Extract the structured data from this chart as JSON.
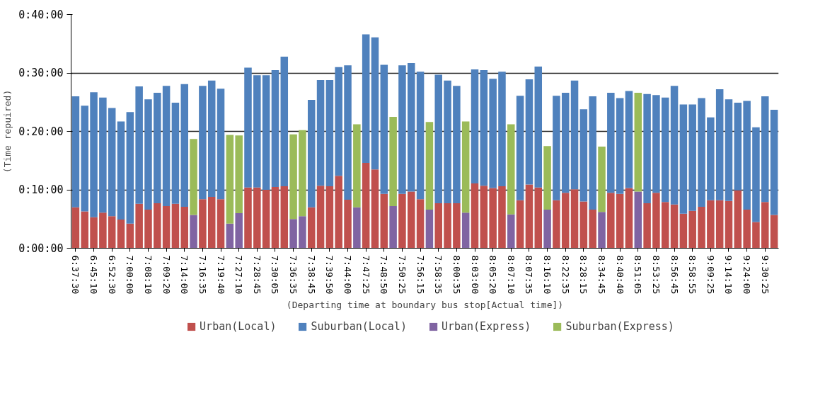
{
  "chart_data": {
    "type": "bar",
    "stacked": true,
    "ylabel": "(Time repuired)",
    "xlabel": "(Departing time at boundary bus stop[Actual time])",
    "categories": [
      "6:37:30",
      null,
      "6:45:10",
      null,
      "6:52:30",
      null,
      "7:00:00",
      null,
      "7:08:10",
      null,
      "7:09:20",
      null,
      "7:14:00",
      null,
      "7:16:35",
      null,
      "7:19:40",
      null,
      "7:27:10",
      null,
      "7:28:45",
      null,
      "7:30:05",
      null,
      "7:36:35",
      null,
      "7:38:45",
      null,
      "7:39:50",
      null,
      "7:44:00",
      null,
      "7:47:25",
      null,
      "7:48:50",
      null,
      "7:50:25",
      null,
      "7:56:15",
      null,
      "7:58:35",
      null,
      "8:00:35",
      null,
      "8:03:00",
      null,
      "8:05:20",
      null,
      "8:07:10",
      null,
      "8:07:35",
      null,
      "8:16:10",
      null,
      "8:22:35",
      null,
      "8:28:15",
      null,
      "8:34:45",
      null,
      "8:40:40",
      null,
      "8:51:05",
      null,
      "8:53:25",
      null,
      "8:56:45",
      null,
      "8:58:55",
      null,
      "9:09:25",
      null,
      "9:14:10",
      null,
      "9:24:00",
      null,
      "9:30:25",
      null
    ],
    "series": [
      {
        "name": "Urban(Local)",
        "color": "#c0504d",
        "values": [
          7.0,
          6.3,
          5.3,
          6.1,
          5.5,
          4.9,
          4.2,
          7.6,
          6.6,
          7.7,
          7.2,
          7.6,
          7.1,
          null,
          8.4,
          8.8,
          8.4,
          null,
          null,
          10.4,
          10.4,
          10.0,
          10.5,
          10.6,
          null,
          null,
          7.0,
          10.7,
          10.6,
          12.4,
          8.3,
          null,
          14.6,
          13.5,
          9.3,
          null,
          9.3,
          9.7,
          8.4,
          null,
          7.7,
          7.7,
          7.7,
          null,
          11.1,
          10.7,
          10.3,
          10.6,
          null,
          8.2,
          10.9,
          10.4,
          null,
          8.2,
          9.5,
          10.1,
          8.0,
          6.6,
          null,
          9.5,
          9.3,
          10.3,
          null,
          7.7,
          9.5,
          7.9,
          7.5,
          5.9,
          6.4,
          7.1,
          8.2,
          8.2,
          8.1,
          9.9,
          6.6,
          4.5,
          7.9,
          5.7
        ]
      },
      {
        "name": "Suburban(Local)",
        "color": "#4f81bd",
        "values": [
          19.0,
          18.1,
          21.4,
          19.7,
          18.5,
          16.8,
          19.1,
          20.1,
          18.9,
          18.9,
          20.6,
          17.3,
          21.0,
          null,
          19.4,
          19.9,
          18.9,
          null,
          null,
          20.5,
          19.2,
          19.6,
          20.0,
          22.2,
          null,
          null,
          18.4,
          18.1,
          18.2,
          18.6,
          23.0,
          null,
          22.0,
          22.6,
          22.1,
          null,
          22.0,
          22.0,
          21.8,
          null,
          22.0,
          21.0,
          20.1,
          null,
          19.5,
          19.8,
          18.7,
          19.6,
          null,
          17.9,
          18.0,
          20.7,
          null,
          17.9,
          17.1,
          18.6,
          15.8,
          19.4,
          null,
          17.1,
          16.4,
          16.6,
          null,
          18.7,
          16.7,
          17.9,
          20.3,
          18.7,
          18.2,
          18.6,
          14.2,
          19.0,
          17.4,
          15.0,
          18.6,
          16.2,
          18.1,
          18.0
        ]
      },
      {
        "name": "Urban(Express)",
        "color": "#8064a2",
        "values": [
          null,
          null,
          null,
          null,
          null,
          null,
          null,
          null,
          null,
          null,
          null,
          null,
          null,
          5.7,
          null,
          null,
          null,
          4.2,
          6.0,
          null,
          null,
          null,
          null,
          null,
          5.0,
          5.5,
          null,
          null,
          null,
          null,
          null,
          7.0,
          null,
          null,
          null,
          7.2,
          null,
          null,
          null,
          6.6,
          null,
          null,
          null,
          6.1,
          null,
          null,
          null,
          null,
          5.8,
          null,
          null,
          null,
          6.6,
          null,
          null,
          null,
          null,
          null,
          6.2,
          null,
          null,
          null,
          9.7,
          null,
          null,
          null,
          null,
          null,
          null,
          null,
          null,
          null,
          null,
          null,
          null,
          null,
          null,
          null
        ]
      },
      {
        "name": "Suburban(Express)",
        "color": "#9bbb59",
        "values": [
          null,
          null,
          null,
          null,
          null,
          null,
          null,
          null,
          null,
          null,
          null,
          null,
          null,
          13.0,
          null,
          null,
          null,
          15.2,
          13.3,
          null,
          null,
          null,
          null,
          null,
          14.5,
          14.7,
          null,
          null,
          null,
          null,
          null,
          14.2,
          null,
          null,
          null,
          15.3,
          null,
          null,
          null,
          15.0,
          null,
          null,
          null,
          15.6,
          null,
          null,
          null,
          null,
          15.4,
          null,
          null,
          null,
          10.9,
          null,
          null,
          null,
          null,
          null,
          11.2,
          null,
          null,
          null,
          16.9,
          null,
          null,
          null,
          null,
          null,
          null,
          null,
          null,
          null,
          null,
          null,
          null,
          null,
          null,
          null
        ]
      }
    ],
    "ylim": [
      0,
      40
    ],
    "yticks": [
      {
        "value": 0,
        "label": "0:00:00"
      },
      {
        "value": 10,
        "label": "0:10:00"
      },
      {
        "value": 20,
        "label": "0:20:00"
      },
      {
        "value": 30,
        "label": "0:30:00"
      },
      {
        "value": 40,
        "label": "0:40:00"
      }
    ],
    "grid": "y",
    "legend": "bottom"
  }
}
